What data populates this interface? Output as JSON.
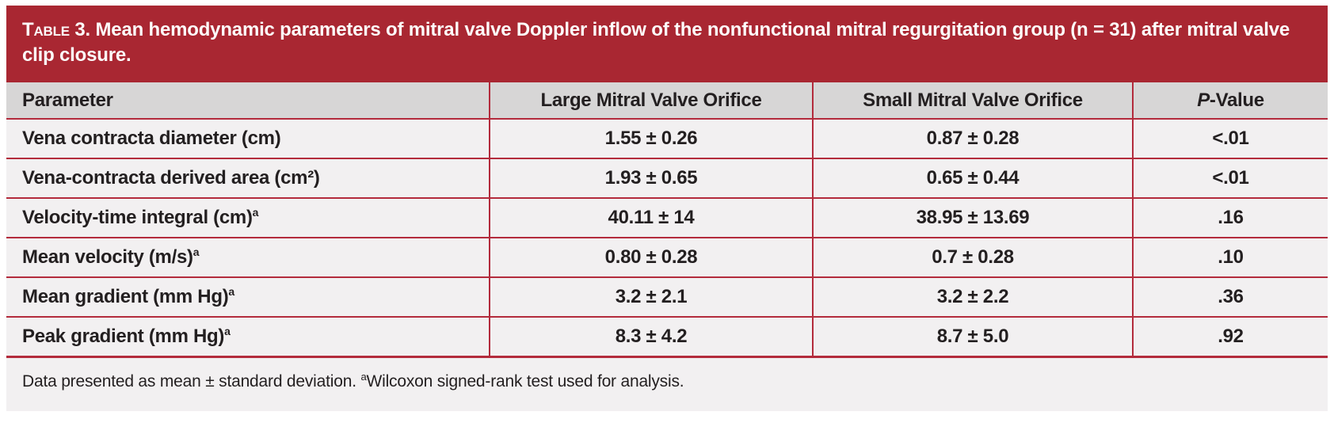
{
  "colors": {
    "title_bar_red": "#a92732",
    "grid_line_red": "#b32b3c",
    "header_row_gray": "#d7d6d6",
    "row_background": "#f2f0f1",
    "text_dark": "#231f20",
    "title_text_white": "#fdfbfa"
  },
  "table": {
    "title_prefix": "Table 3.",
    "title_text": " Mean hemodynamic parameters of mitral valve Doppler inflow of the nonfunctional mitral regurgitation group (n = 31) after mitral valve clip closure.",
    "columns": {
      "parameter": "Parameter",
      "large": "Large Mitral Valve Orifice",
      "small": "Small Mitral Valve Orifice",
      "pvalue_italic": "P",
      "pvalue_rest": "-Value"
    },
    "rows": [
      {
        "param": "Vena contracta diameter (cm)",
        "sup": "",
        "large": "1.55 ± 0.26",
        "small": "0.87 ± 0.28",
        "p": "<.01"
      },
      {
        "param": "Vena-contracta derived area (cm²)",
        "sup": "",
        "large": "1.93 ± 0.65",
        "small": "0.65 ± 0.44",
        "p": "<.01"
      },
      {
        "param": "Velocity-time integral (cm)",
        "sup": "a",
        "large": "40.11 ± 14",
        "small": "38.95 ± 13.69",
        "p": ".16"
      },
      {
        "param": "Mean velocity (m/s)",
        "sup": "a",
        "large": "0.80 ± 0.28",
        "small": "0.7 ± 0.28",
        "p": ".10"
      },
      {
        "param": "Mean gradient (mm Hg)",
        "sup": "a",
        "large": "3.2 ± 2.1",
        "small": "3.2 ± 2.2",
        "p": ".36"
      },
      {
        "param": "Peak gradient (mm Hg)",
        "sup": "a",
        "large": "8.3 ± 4.2",
        "small": "8.7 ± 5.0",
        "p": ".92"
      }
    ],
    "footnote": {
      "part1": "Data presented as mean ± standard deviation. ",
      "sup": "a",
      "part2": "Wilcoxon signed-rank test used for analysis."
    }
  }
}
